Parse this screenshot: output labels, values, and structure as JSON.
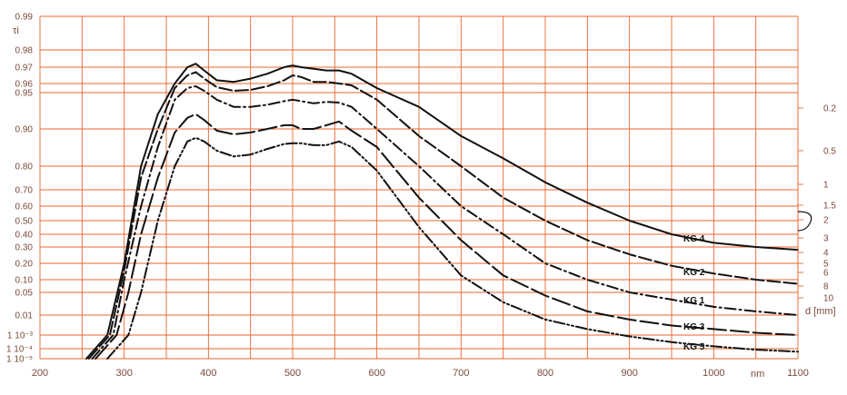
{
  "chart_data": {
    "type": "line",
    "title": "",
    "ylabel": "τi",
    "xlabel": "nm",
    "xlim": [
      200,
      1100
    ],
    "x_ticks": [
      "200",
      "300",
      "400",
      "500",
      "600",
      "700",
      "800",
      "900",
      "1000",
      "1100"
    ],
    "y_ticks": [
      {
        "label": "0.99",
        "value": 0.99
      },
      {
        "label": "0.98",
        "value": 0.98
      },
      {
        "label": "0.97",
        "value": 0.97
      },
      {
        "label": "0.96",
        "value": 0.96
      },
      {
        "label": "0.95",
        "value": 0.95
      },
      {
        "label": "0.90",
        "value": 0.9
      },
      {
        "label": "0.80",
        "value": 0.8
      },
      {
        "label": "0.70",
        "value": 0.7
      },
      {
        "label": "0.60",
        "value": 0.6
      },
      {
        "label": "0.50",
        "value": 0.5
      },
      {
        "label": "0.40",
        "value": 0.4
      },
      {
        "label": "0.30",
        "value": 0.3
      },
      {
        "label": "0.20",
        "value": 0.2
      },
      {
        "label": "0.10",
        "value": 0.1
      },
      {
        "label": "0.05",
        "value": 0.05
      },
      {
        "label": "0.01",
        "value": 0.01
      },
      {
        "label": "1 10⁻³",
        "value": 0.001
      },
      {
        "label": "1 10⁻⁴",
        "value": 0.0001
      },
      {
        "label": "1 10⁻⁵",
        "value": 1e-05
      }
    ],
    "right_axis": {
      "label": "d [mm]",
      "ticks": [
        "0.2",
        "0.5",
        "1",
        "1.5",
        "2",
        "3",
        "4",
        "5",
        "6",
        "8",
        "10"
      ]
    },
    "grid": true,
    "series": [
      {
        "name": "KG 4",
        "dash": "solid",
        "x": [
          255,
          280,
          300,
          320,
          340,
          360,
          375,
          385,
          395,
          410,
          430,
          450,
          470,
          490,
          500,
          510,
          525,
          540,
          555,
          570,
          600,
          650,
          700,
          750,
          800,
          850,
          900,
          950,
          1000,
          1050,
          1100
        ],
        "y": [
          1e-05,
          0.001,
          0.2,
          0.8,
          0.92,
          0.96,
          0.97,
          0.972,
          0.968,
          0.962,
          0.961,
          0.963,
          0.966,
          0.97,
          0.971,
          0.97,
          0.969,
          0.968,
          0.968,
          0.966,
          0.955,
          0.93,
          0.88,
          0.82,
          0.73,
          0.62,
          0.5,
          0.4,
          0.33,
          0.3,
          0.28
        ]
      },
      {
        "name": "KG 2",
        "dash": "dash",
        "x": [
          258,
          283,
          300,
          320,
          340,
          360,
          375,
          385,
          395,
          410,
          430,
          450,
          470,
          490,
          500,
          510,
          525,
          540,
          555,
          570,
          600,
          650,
          700,
          750,
          800,
          850,
          900,
          950,
          1000,
          1050,
          1100
        ],
        "y": [
          1e-05,
          0.001,
          0.15,
          0.75,
          0.9,
          0.955,
          0.965,
          0.967,
          0.963,
          0.956,
          0.952,
          0.953,
          0.957,
          0.962,
          0.965,
          0.964,
          0.961,
          0.961,
          0.96,
          0.958,
          0.94,
          0.88,
          0.8,
          0.65,
          0.5,
          0.35,
          0.25,
          0.18,
          0.13,
          0.1,
          0.08
        ]
      },
      {
        "name": "KG 1",
        "dash": "dashdot",
        "x": [
          262,
          287,
          300,
          320,
          340,
          360,
          375,
          385,
          395,
          410,
          430,
          450,
          470,
          490,
          500,
          510,
          525,
          540,
          555,
          570,
          600,
          650,
          700,
          750,
          800,
          850,
          900,
          950,
          1000,
          1050,
          1100
        ],
        "y": [
          1e-05,
          0.001,
          0.1,
          0.6,
          0.85,
          0.94,
          0.955,
          0.957,
          0.952,
          0.94,
          0.93,
          0.93,
          0.933,
          0.938,
          0.94,
          0.938,
          0.935,
          0.937,
          0.936,
          0.93,
          0.9,
          0.8,
          0.6,
          0.4,
          0.2,
          0.1,
          0.05,
          0.03,
          0.018,
          0.013,
          0.01
        ]
      },
      {
        "name": "KG 3",
        "dash": "longdash",
        "x": [
          266,
          291,
          305,
          320,
          340,
          360,
          375,
          385,
          395,
          410,
          430,
          450,
          470,
          490,
          500,
          510,
          525,
          540,
          555,
          570,
          600,
          650,
          700,
          750,
          800,
          850,
          900,
          950,
          1000,
          1050,
          1100
        ],
        "y": [
          1e-05,
          0.001,
          0.05,
          0.4,
          0.75,
          0.89,
          0.915,
          0.92,
          0.912,
          0.895,
          0.885,
          0.89,
          0.9,
          0.905,
          0.905,
          0.9,
          0.9,
          0.905,
          0.91,
          0.895,
          0.85,
          0.65,
          0.35,
          0.12,
          0.04,
          0.013,
          0.006,
          0.003,
          0.002,
          0.0013,
          0.001
        ]
      },
      {
        "name": "KG 5",
        "dash": "dashdotdot",
        "x": [
          280,
          305,
          320,
          340,
          360,
          375,
          385,
          395,
          410,
          430,
          450,
          470,
          490,
          500,
          510,
          525,
          540,
          555,
          570,
          600,
          650,
          700,
          750,
          800,
          850,
          900,
          950,
          1000,
          1050,
          1100
        ],
        "y": [
          1e-05,
          0.001,
          0.05,
          0.5,
          0.8,
          0.865,
          0.875,
          0.865,
          0.84,
          0.825,
          0.83,
          0.845,
          0.858,
          0.86,
          0.86,
          0.855,
          0.855,
          0.865,
          0.85,
          0.78,
          0.45,
          0.12,
          0.025,
          0.006,
          0.002,
          0.0008,
          0.0003,
          0.00015,
          8e-05,
          5e-05
        ]
      }
    ]
  }
}
